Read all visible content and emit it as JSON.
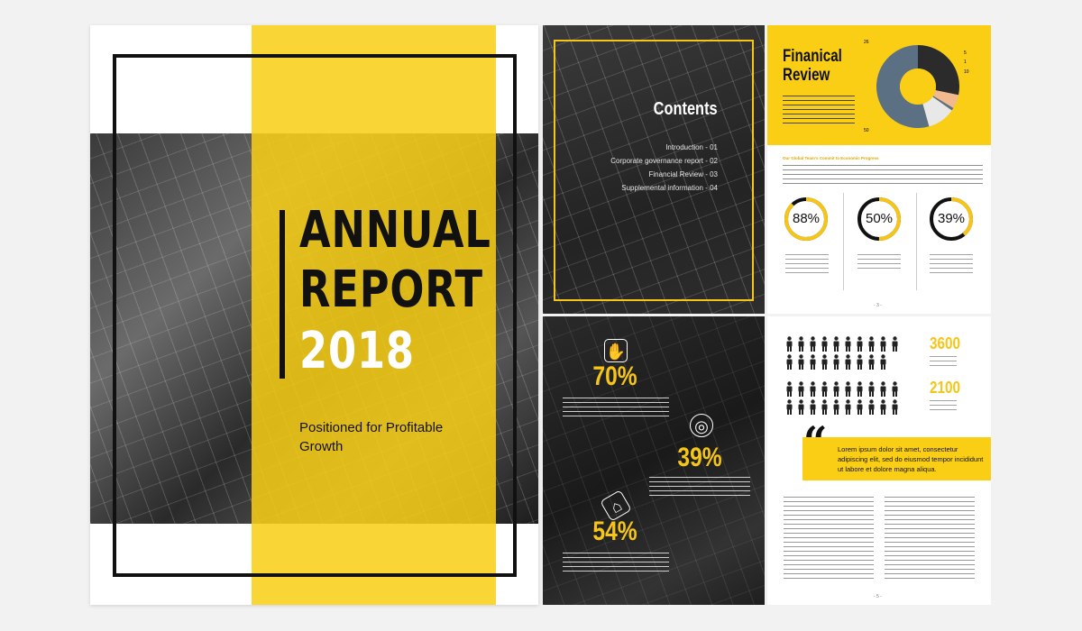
{
  "cover": {
    "title_line1": "ANNUAL",
    "title_line2": "REPORT",
    "year": "2018",
    "subtitle": "Positioned for Profitable Growth"
  },
  "contents": {
    "title": "Contents",
    "items": [
      "Introduction - 01",
      "Corporate governance report - 02",
      "Financial Review - 03",
      "Supplemental information - 04"
    ]
  },
  "financial": {
    "title": "Finanical Review",
    "section_heading": "Our Global Team's Commit to Economic Progress",
    "pie_labels": [
      "26",
      "5",
      "1",
      "10",
      "50"
    ],
    "gauges": [
      {
        "value": "88%",
        "fraction": 0.88
      },
      {
        "value": "50%",
        "fraction": 0.5
      },
      {
        "value": "39%",
        "fraction": 0.39
      }
    ],
    "page_number": "- 3 -"
  },
  "stats": {
    "items": [
      {
        "value": "70%",
        "icon": "handshake-icon"
      },
      {
        "value": "39%",
        "icon": "piggy-bank-icon"
      },
      {
        "value": "54%",
        "icon": "price-tag-icon"
      }
    ]
  },
  "people": {
    "count_1": "3600",
    "count_2": "2100",
    "quote": "Lorem ipsum dolor sit amet, consectetur adipiscing elit, sed do eiusmod tempor incididunt ut labore et dolore magna aliqua.",
    "page_number": "- 5 -"
  },
  "chart_data": {
    "type": "pie",
    "values": [
      26,
      5,
      1,
      10,
      50
    ],
    "colors": [
      "#2b2b2b",
      "#f2b98f",
      "#5b7083",
      "#e8e8e8",
      "#5b7083"
    ]
  },
  "colors": {
    "accent": "#f9ce15",
    "dark": "#111111"
  }
}
